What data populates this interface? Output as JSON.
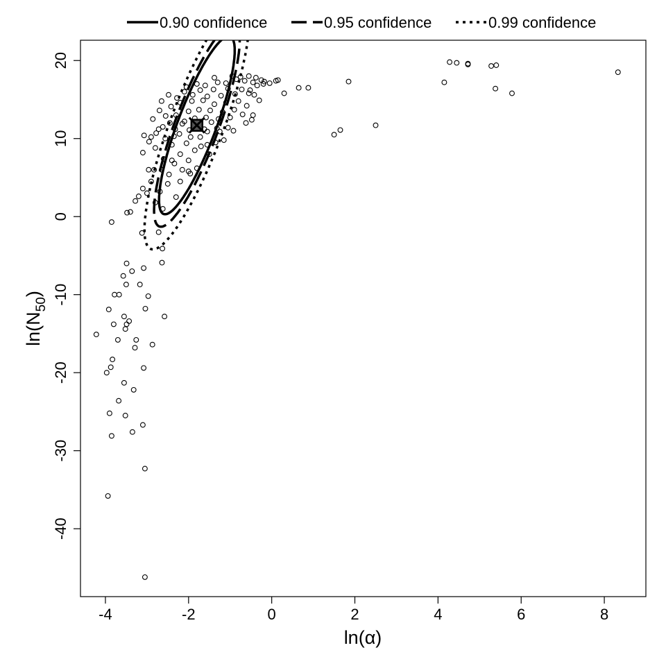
{
  "chart_data": {
    "type": "scatter",
    "title": "",
    "xlabel": "ln(α)",
    "ylabel": "ln(N50)",
    "ylabel_parts": {
      "main": "ln(N",
      "sub": "50",
      "close": ")"
    },
    "xlim": [
      -4.6,
      9.0
    ],
    "ylim": [
      -48.7,
      22.6
    ],
    "xticks": [
      -4,
      -2,
      0,
      2,
      4,
      6,
      8
    ],
    "yticks": [
      -40,
      -30,
      -20,
      -10,
      0,
      10,
      20
    ],
    "grid": false,
    "legend_position": "top",
    "mle_point": {
      "x": -1.8,
      "y": 11.7
    },
    "confidence_regions": [
      {
        "name": "0.90 confidence",
        "style": "solid",
        "center": [
          -1.8,
          11.7
        ],
        "rx": 0.91,
        "ry": 11.4,
        "rho": 0.84
      },
      {
        "name": "0.95 confidence",
        "style": "dashed",
        "center": [
          -1.8,
          11.7
        ],
        "rx": 1.03,
        "ry": 13.0,
        "rho": 0.84
      },
      {
        "name": "0.99 confidence",
        "style": "dotted",
        "center": [
          -1.8,
          11.7
        ],
        "rx": 1.26,
        "ry": 15.9,
        "rho": 0.84
      }
    ],
    "points": [
      [
        -3.85,
        -0.7
      ],
      [
        -4.22,
        -15.1
      ],
      [
        -3.97,
        -20.0
      ],
      [
        -3.94,
        -35.8
      ],
      [
        -3.05,
        -46.2
      ],
      [
        -3.05,
        -32.3
      ],
      [
        -3.9,
        -25.2
      ],
      [
        -3.85,
        -28.1
      ],
      [
        -3.52,
        -25.5
      ],
      [
        -3.35,
        -27.6
      ],
      [
        -3.1,
        -26.7
      ],
      [
        -3.68,
        -23.6
      ],
      [
        -3.32,
        -22.2
      ],
      [
        -3.55,
        -21.3
      ],
      [
        -3.87,
        -19.3
      ],
      [
        -3.83,
        -18.3
      ],
      [
        -3.08,
        -19.4
      ],
      [
        -2.87,
        -16.4
      ],
      [
        -3.29,
        -16.8
      ],
      [
        -3.26,
        -15.8
      ],
      [
        -3.7,
        -15.8
      ],
      [
        -3.52,
        -14.4
      ],
      [
        -3.8,
        -13.8
      ],
      [
        -3.49,
        -13.8
      ],
      [
        -3.43,
        -13.4
      ],
      [
        -3.55,
        -12.8
      ],
      [
        -3.04,
        -11.8
      ],
      [
        -2.58,
        -12.8
      ],
      [
        -3.92,
        -11.9
      ],
      [
        -3.78,
        -10.0
      ],
      [
        -3.67,
        -10.0
      ],
      [
        -3.17,
        -8.7
      ],
      [
        -3.5,
        -8.7
      ],
      [
        -2.97,
        -10.2
      ],
      [
        -3.57,
        -7.6
      ],
      [
        -3.36,
        -7.0
      ],
      [
        -3.49,
        -6.0
      ],
      [
        -3.08,
        -6.6
      ],
      [
        -3.12,
        -2.1
      ],
      [
        -2.63,
        -4.1
      ],
      [
        -2.64,
        -5.9
      ],
      [
        -2.72,
        -2.0
      ],
      [
        -3.48,
        0.5
      ],
      [
        -3.4,
        0.6
      ],
      [
        -3.2,
        2.6
      ],
      [
        -3.0,
        3.0
      ],
      [
        -2.8,
        1.8
      ],
      [
        -2.62,
        1.0
      ],
      [
        -3.28,
        2.0
      ],
      [
        -3.1,
        3.6
      ],
      [
        -2.9,
        4.5
      ],
      [
        -2.69,
        3.2
      ],
      [
        -2.5,
        4.2
      ],
      [
        -2.3,
        2.5
      ],
      [
        -2.2,
        4.5
      ],
      [
        -2.0,
        5.8
      ],
      [
        -2.96,
        6.0
      ],
      [
        -2.83,
        6.0
      ],
      [
        -2.65,
        6.0
      ],
      [
        -2.47,
        5.4
      ],
      [
        -2.34,
        6.8
      ],
      [
        -2.15,
        6.0
      ],
      [
        -1.96,
        5.5
      ],
      [
        -1.8,
        6.2
      ],
      [
        -3.1,
        8.2
      ],
      [
        -2.8,
        8.8
      ],
      [
        -2.6,
        7.4
      ],
      [
        -2.4,
        7.2
      ],
      [
        -2.2,
        8.0
      ],
      [
        -2.0,
        7.2
      ],
      [
        -1.85,
        8.5
      ],
      [
        -1.7,
        9.0
      ],
      [
        -3.07,
        10.4
      ],
      [
        -2.9,
        10.2
      ],
      [
        -2.72,
        11.2
      ],
      [
        -2.56,
        10.0
      ],
      [
        -2.4,
        9.2
      ],
      [
        -2.22,
        10.6
      ],
      [
        -2.05,
        9.4
      ],
      [
        -1.95,
        10.2
      ],
      [
        -1.5,
        8.0
      ],
      [
        -1.35,
        9.5
      ],
      [
        -1.15,
        9.8
      ],
      [
        -1.55,
        10.9
      ],
      [
        -1.72,
        10.2
      ],
      [
        -1.25,
        10.9
      ],
      [
        -1.05,
        11.4
      ],
      [
        -0.92,
        11.0
      ],
      [
        -2.86,
        12.5
      ],
      [
        -2.7,
        13.6
      ],
      [
        -2.55,
        12.9
      ],
      [
        -2.42,
        14.1
      ],
      [
        -2.3,
        13.0
      ],
      [
        -2.2,
        14.6
      ],
      [
        -2.1,
        12.2
      ],
      [
        -2.0,
        13.5
      ],
      [
        -1.92,
        14.8
      ],
      [
        -1.85,
        12.6
      ],
      [
        -1.75,
        13.7
      ],
      [
        -1.65,
        14.9
      ],
      [
        -1.58,
        12.7
      ],
      [
        -1.48,
        13.6
      ],
      [
        -1.38,
        14.4
      ],
      [
        -1.28,
        12.5
      ],
      [
        -1.18,
        13.4
      ],
      [
        -1.1,
        14.6
      ],
      [
        -1.0,
        12.7
      ],
      [
        -0.9,
        13.7
      ],
      [
        -0.8,
        14.8
      ],
      [
        -0.7,
        13.1
      ],
      [
        -0.6,
        14.2
      ],
      [
        -0.48,
        12.4
      ],
      [
        -2.62,
        11.5
      ],
      [
        -2.45,
        12.0
      ],
      [
        -2.32,
        11.2
      ],
      [
        -2.15,
        11.9
      ],
      [
        -1.98,
        11.1
      ],
      [
        -1.62,
        11.2
      ],
      [
        -1.45,
        12.1
      ],
      [
        -1.32,
        11.3
      ],
      [
        -2.48,
        15.6
      ],
      [
        -2.28,
        15.2
      ],
      [
        -2.1,
        16.0
      ],
      [
        -1.9,
        15.6
      ],
      [
        -1.72,
        16.2
      ],
      [
        -1.55,
        15.4
      ],
      [
        -1.4,
        16.3
      ],
      [
        -1.22,
        15.5
      ],
      [
        -1.05,
        16.4
      ],
      [
        -0.88,
        15.7
      ],
      [
        -0.72,
        16.3
      ],
      [
        -0.55,
        15.8
      ],
      [
        -2.05,
        16.6
      ],
      [
        -1.8,
        17.0
      ],
      [
        -1.6,
        16.8
      ],
      [
        -1.3,
        17.2
      ],
      [
        -1.1,
        17.1
      ],
      [
        -0.85,
        17.6
      ],
      [
        -0.65,
        17.4
      ],
      [
        -0.45,
        17.2
      ],
      [
        -0.35,
        16.8
      ],
      [
        -0.2,
        17.0
      ],
      [
        -0.05,
        17.1
      ],
      [
        -0.95,
        18.0
      ],
      [
        -0.75,
        17.9
      ],
      [
        -0.55,
        18.0
      ],
      [
        -0.38,
        17.8
      ],
      [
        -0.18,
        17.3
      ],
      [
        -0.25,
        17.5
      ],
      [
        -0.52,
        16.2
      ],
      [
        -0.42,
        15.6
      ],
      [
        -0.3,
        14.9
      ],
      [
        -0.45,
        13.0
      ],
      [
        -0.62,
        12.0
      ],
      [
        -2.78,
        10.7
      ],
      [
        -2.95,
        9.6
      ],
      [
        -2.35,
        10.3
      ],
      [
        -1.55,
        9.2
      ],
      [
        -2.65,
        14.8
      ],
      [
        -1.38,
        17.8
      ],
      [
        0.1,
        17.4
      ],
      [
        0.15,
        17.5
      ],
      [
        0.3,
        15.8
      ],
      [
        0.65,
        16.5
      ],
      [
        0.88,
        16.5
      ],
      [
        1.5,
        10.5
      ],
      [
        1.65,
        11.1
      ],
      [
        1.85,
        17.3
      ],
      [
        2.5,
        11.7
      ],
      [
        4.15,
        17.2
      ],
      [
        4.28,
        19.8
      ],
      [
        4.45,
        19.7
      ],
      [
        4.72,
        19.6
      ],
      [
        4.72,
        19.5
      ],
      [
        5.28,
        19.3
      ],
      [
        5.4,
        19.4
      ],
      [
        5.38,
        16.4
      ],
      [
        5.78,
        15.8
      ],
      [
        8.33,
        18.5
      ]
    ]
  }
}
